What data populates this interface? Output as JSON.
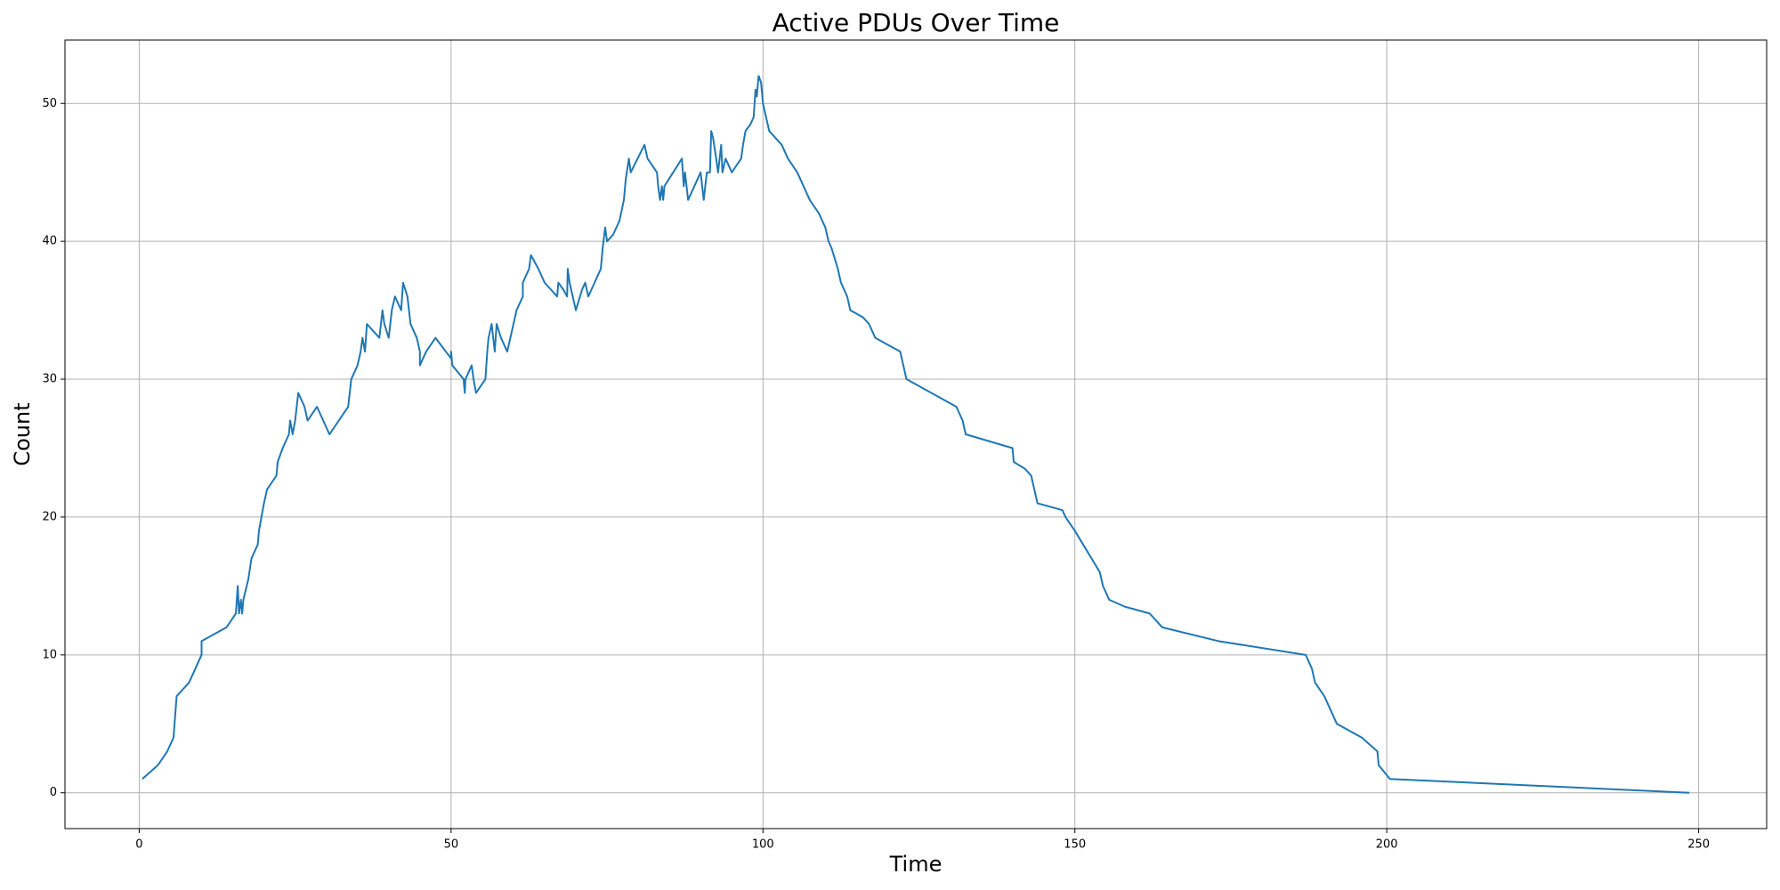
{
  "chart_data": {
    "type": "line",
    "title": "Active PDUs Over Time",
    "x_label": "Time",
    "y_label": "Count",
    "x": [
      0.5,
      3,
      4.5,
      5.5,
      6,
      8,
      9,
      10,
      10,
      14,
      15.5,
      15.8,
      16,
      16.3,
      16.5,
      16.7,
      17.5,
      18,
      19,
      19.2,
      20,
      20.5,
      22,
      22.2,
      23,
      24,
      24.2,
      24.6,
      25,
      25.5,
      26.5,
      27,
      28.5,
      30.5,
      32,
      33.5,
      34,
      35,
      35.5,
      35.8,
      36.2,
      36.5,
      38.5,
      39,
      39.3,
      40,
      40.5,
      41,
      41.5,
      42,
      42.3,
      43,
      43.5,
      44.5,
      45,
      45,
      46,
      47.5,
      50,
      50,
      50.2,
      52,
      52.2,
      52.3,
      53.3,
      53.6,
      54,
      55.5,
      55.8,
      56,
      56.5,
      57,
      57.3,
      58,
      59,
      60,
      60.5,
      61.5,
      61.5,
      62.5,
      62.8,
      64,
      65,
      66,
      67,
      67.2,
      68,
      68.6,
      68.7,
      69,
      70,
      71,
      71.5,
      72,
      74,
      74.3,
      74.7,
      75,
      76,
      77,
      77.7,
      78,
      78.5,
      78.8,
      81,
      81.5,
      83,
      83.2,
      83.5,
      83.8,
      84,
      84.2,
      87,
      87.3,
      87.5,
      88,
      89,
      90,
      90.5,
      91,
      91.5,
      91.7,
      92,
      92.5,
      92.8,
      93.3,
      93.5,
      94,
      95,
      96.5,
      96.8,
      97.2,
      98,
      98.5,
      98.8,
      99,
      99.3,
      99.7,
      100,
      100.5,
      101,
      103,
      104,
      105.5,
      106.5,
      107.5,
      109,
      110,
      110.5,
      111,
      112,
      112.5,
      113.5,
      114,
      116,
      117,
      118,
      120,
      122,
      122.5,
      123,
      127,
      129,
      131,
      132,
      132.5,
      140,
      140.2,
      142,
      143,
      143.5,
      144,
      148,
      148.5,
      150,
      154,
      154.5,
      155.5,
      158,
      162,
      164,
      173,
      187,
      187.5,
      188,
      188.5,
      190,
      192,
      196,
      198.5,
      198.7,
      200.5,
      248.5
    ],
    "series": [
      {
        "name": "Active PDUs",
        "color": "#1f77b4",
        "values": [
          1,
          2,
          3,
          4,
          7,
          8,
          9,
          10,
          11,
          12,
          13,
          15,
          13,
          14,
          13,
          14,
          15.5,
          17,
          18,
          19,
          21,
          22,
          23,
          24,
          25,
          26,
          27,
          26,
          27,
          29,
          28,
          27,
          28,
          26,
          27,
          28,
          30,
          31,
          32,
          33,
          32,
          34,
          33,
          35,
          34,
          33,
          35,
          36,
          35.5,
          35,
          37,
          36,
          34,
          33,
          32,
          31,
          32,
          33,
          31.5,
          32,
          31,
          30,
          29,
          30,
          31,
          30,
          29,
          30,
          32,
          33,
          34,
          32,
          34,
          33,
          32,
          34,
          35,
          36,
          37,
          38,
          39,
          38,
          37,
          36.5,
          36,
          37,
          36.5,
          36,
          38,
          37,
          35,
          36.5,
          37,
          36,
          38,
          39.5,
          41,
          40,
          40.5,
          41.5,
          43,
          44.5,
          46,
          45,
          47,
          46,
          45,
          44,
          43,
          44,
          43,
          44,
          46,
          44,
          45,
          43,
          44,
          45,
          43,
          45,
          45,
          48,
          47.5,
          46,
          45,
          47,
          45,
          46,
          45,
          46,
          47,
          48,
          48.5,
          49,
          51,
          50.5,
          52,
          51.5,
          50,
          49,
          48,
          47,
          46,
          45,
          44,
          43,
          42,
          41,
          40,
          39.5,
          38,
          37,
          36,
          35,
          34.5,
          34,
          33,
          32.5,
          32,
          31,
          30,
          29,
          28.5,
          28,
          27,
          26,
          25,
          24,
          23.5,
          23,
          22,
          21,
          20.5,
          20,
          19,
          16,
          15,
          14,
          13.5,
          13,
          12,
          11,
          10,
          9.5,
          9,
          8,
          7,
          5,
          4,
          3,
          2,
          1,
          0
        ]
      }
    ],
    "xlim": [
      -11.9,
      260.9
    ],
    "ylim": [
      -2.6,
      54.6
    ],
    "xticks": [
      0,
      50,
      100,
      150,
      200,
      250
    ],
    "yticks": [
      0,
      10,
      20,
      30,
      40,
      50
    ],
    "grid": true
  }
}
